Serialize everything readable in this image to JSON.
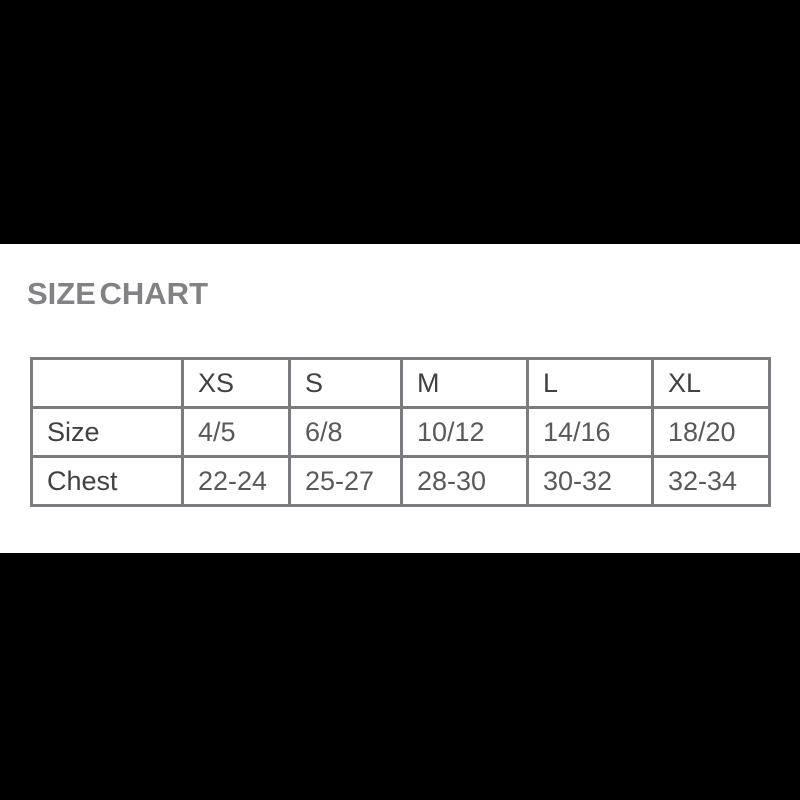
{
  "title": "SIZE CHART",
  "colors": {
    "letterbox": "#000000",
    "panel_background": "#ffffff",
    "title_text": "#818286",
    "table_border": "#7b7c7f",
    "header_text": "#414042",
    "row_label_text": "#414042",
    "value_text": "#58595b"
  },
  "chart_data": {
    "type": "table",
    "title": "SIZE CHART",
    "columns": [
      "XS",
      "S",
      "M",
      "L",
      "XL"
    ],
    "rows": [
      {
        "label": "Size",
        "values": [
          "4/5",
          "6/8",
          "10/12",
          "14/16",
          "18/20"
        ]
      },
      {
        "label": "Chest",
        "values": [
          "22-24",
          "25-27",
          "28-30",
          "30-32",
          "32-34"
        ]
      }
    ],
    "layout_hints": {
      "header_spans_data_columns_only": true,
      "top_left_cell_empty": true,
      "grid": "on"
    }
  }
}
